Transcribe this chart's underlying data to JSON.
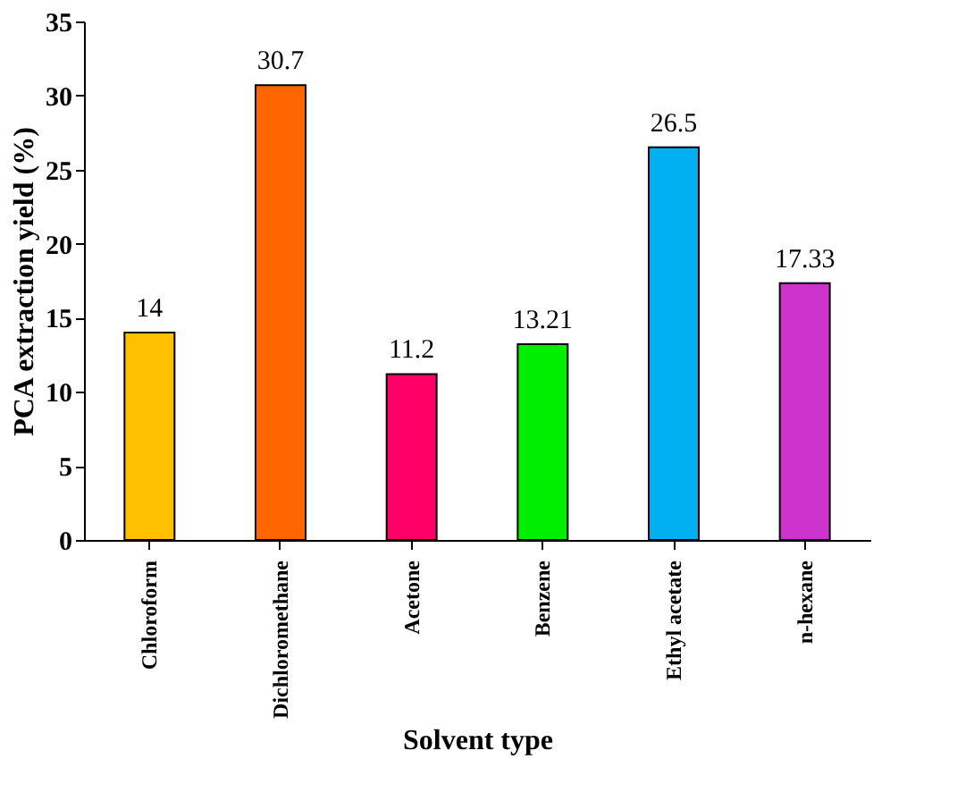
{
  "chart_data": {
    "type": "bar",
    "xlabel": "Solvent type",
    "ylabel": "PCA extraction yield (%)",
    "categories": [
      "Chloroform",
      "Dichloromethane",
      "Acetone",
      "Benzene",
      "Ethyl acetate",
      "n-hexane"
    ],
    "values": [
      14,
      30.7,
      11.2,
      13.21,
      26.5,
      17.33
    ],
    "colors": [
      "#ffc000",
      "#ff6600",
      "#ff0066",
      "#00ee00",
      "#00b0f0",
      "#cc33cc"
    ],
    "ylim": [
      0,
      35
    ],
    "yticks": [
      0,
      5,
      10,
      15,
      20,
      25,
      30,
      35
    ],
    "grid": false,
    "legend": false,
    "data_labels": true
  }
}
